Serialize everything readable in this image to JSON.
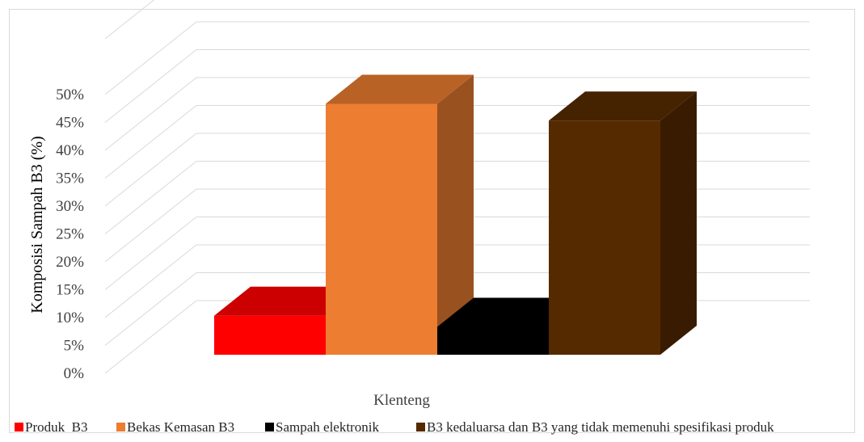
{
  "chart_data": {
    "type": "bar",
    "categories": [
      "Klenteng"
    ],
    "series": [
      {
        "name": "Produk  B3",
        "values": [
          7
        ],
        "color": "#ff0000"
      },
      {
        "name": "Bekas Kemasan B3",
        "values": [
          45
        ],
        "color": "#ed7d31"
      },
      {
        "name": "Sampah elektronik",
        "values": [
          5
        ],
        "color": "#000000"
      },
      {
        "name": "B3 kedaluarsa dan B3 yang tidak memenuhi spesifikasi produk",
        "values": [
          42
        ],
        "color": "#562a00"
      }
    ],
    "yticks": [
      "0%",
      "5%",
      "10%",
      "15%",
      "20%",
      "25%",
      "30%",
      "35%",
      "40%",
      "45%",
      "50%"
    ],
    "ylim": [
      0,
      50
    ],
    "xlabel": "Klenteng",
    "ylabel": "Komposisi Sampah B3 (%)",
    "grid": true,
    "legend": "bottom",
    "three_d": true
  }
}
